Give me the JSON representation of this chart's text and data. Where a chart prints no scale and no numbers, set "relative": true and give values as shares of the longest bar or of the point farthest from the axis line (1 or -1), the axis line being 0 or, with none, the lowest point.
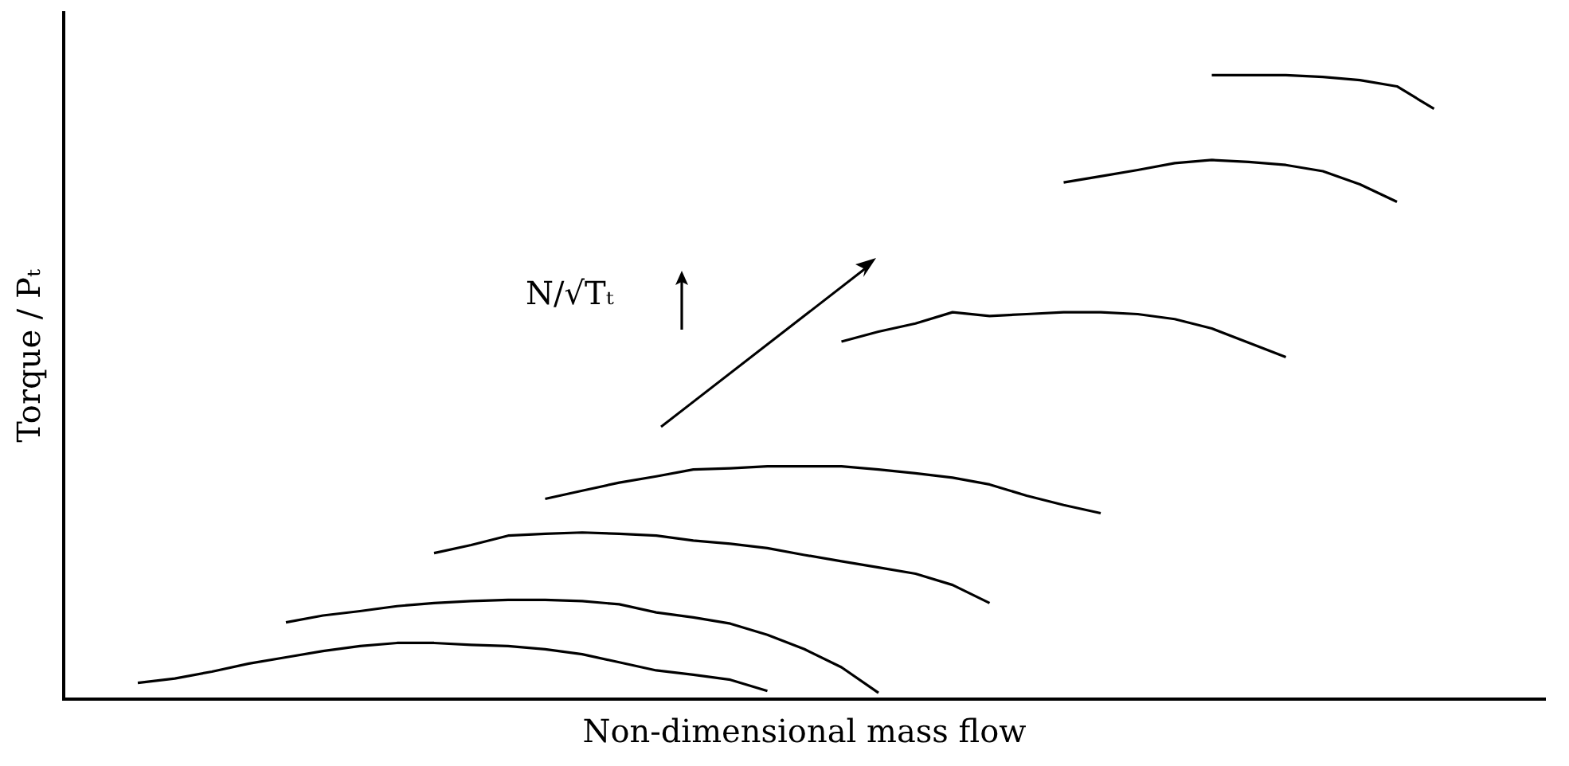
{
  "chart_data": {
    "type": "line",
    "xlabel": "Non-dimensional mass flow",
    "ylabel": "Torque / Pₜ",
    "relative": true,
    "grid": false,
    "legend": false,
    "marker": "none",
    "line_style": "solid",
    "annotations": [
      "N/√Tₜ"
    ],
    "categories": [
      null,
      null,
      null,
      null,
      null,
      null,
      null,
      null,
      null,
      null,
      null,
      null,
      null,
      null,
      null,
      null,
      null,
      null,
      null,
      null,
      null,
      null,
      null,
      null,
      null,
      null,
      null,
      null,
      null,
      null,
      null,
      null,
      null,
      null,
      null,
      null,
      null,
      null,
      null,
      null,
      null
    ],
    "series": [
      {
        "color": "#000000",
        "values": [
          null,
          null,
          0.026,
          0.033,
          0.044,
          0.057,
          0.067,
          0.077,
          0.085,
          0.09,
          0.09,
          0.087,
          0.085,
          0.08,
          0.072,
          0.059,
          0.046,
          0.039,
          0.031,
          0.013,
          null,
          null,
          null,
          null,
          null,
          null,
          null,
          null,
          null,
          null,
          null,
          null,
          null,
          null,
          null,
          null,
          null,
          null,
          null,
          null,
          null
        ]
      },
      {
        "color": "#000000",
        "values": [
          null,
          null,
          null,
          null,
          null,
          null,
          0.123,
          0.134,
          0.141,
          0.149,
          0.154,
          0.157,
          0.159,
          0.159,
          0.157,
          0.152,
          0.139,
          0.131,
          0.121,
          0.103,
          0.08,
          0.051,
          0.01,
          null,
          null,
          null,
          null,
          null,
          null,
          null,
          null,
          null,
          null,
          null,
          null,
          null,
          null,
          null,
          null,
          null,
          null
        ]
      },
      {
        "color": "#000000",
        "values": [
          null,
          null,
          null,
          null,
          null,
          null,
          null,
          null,
          null,
          null,
          0.234,
          0.247,
          0.262,
          0.265,
          0.267,
          0.265,
          0.262,
          0.254,
          0.249,
          0.242,
          0.231,
          0.221,
          0.211,
          0.201,
          0.183,
          0.154,
          null,
          null,
          null,
          null,
          null,
          null,
          null,
          null,
          null,
          null,
          null,
          null,
          null,
          null,
          null
        ]
      },
      {
        "color": "#000000",
        "values": [
          null,
          null,
          null,
          null,
          null,
          null,
          null,
          null,
          null,
          null,
          null,
          null,
          null,
          0.321,
          0.334,
          0.347,
          0.357,
          0.368,
          0.37,
          0.373,
          0.373,
          0.373,
          0.368,
          0.362,
          0.355,
          0.344,
          0.326,
          0.311,
          0.298,
          null,
          null,
          null,
          null,
          null,
          null,
          null,
          null,
          null,
          null,
          null,
          null
        ]
      },
      {
        "color": "#000000",
        "values": [
          null,
          null,
          null,
          null,
          null,
          null,
          null,
          null,
          null,
          null,
          null,
          null,
          null,
          null,
          null,
          null,
          null,
          null,
          null,
          null,
          null,
          0.573,
          0.589,
          0.602,
          0.62,
          0.614,
          0.617,
          0.62,
          0.62,
          0.617,
          0.609,
          0.594,
          0.571,
          0.548,
          null,
          null,
          null,
          null,
          null,
          null,
          null
        ]
      },
      {
        "color": "#000000",
        "values": [
          null,
          null,
          null,
          null,
          null,
          null,
          null,
          null,
          null,
          null,
          null,
          null,
          null,
          null,
          null,
          null,
          null,
          null,
          null,
          null,
          null,
          null,
          null,
          null,
          null,
          null,
          null,
          0.828,
          0.838,
          0.848,
          0.859,
          0.864,
          0.861,
          0.856,
          0.846,
          0.825,
          0.797,
          null,
          null,
          null,
          null
        ]
      },
      {
        "color": "#000000",
        "values": [
          null,
          null,
          null,
          null,
          null,
          null,
          null,
          null,
          null,
          null,
          null,
          null,
          null,
          null,
          null,
          null,
          null,
          null,
          null,
          null,
          null,
          null,
          null,
          null,
          null,
          null,
          null,
          null,
          null,
          null,
          null,
          1.0,
          1.0,
          1.0,
          0.997,
          0.992,
          0.982,
          0.946,
          null,
          null,
          null
        ]
      }
    ]
  }
}
